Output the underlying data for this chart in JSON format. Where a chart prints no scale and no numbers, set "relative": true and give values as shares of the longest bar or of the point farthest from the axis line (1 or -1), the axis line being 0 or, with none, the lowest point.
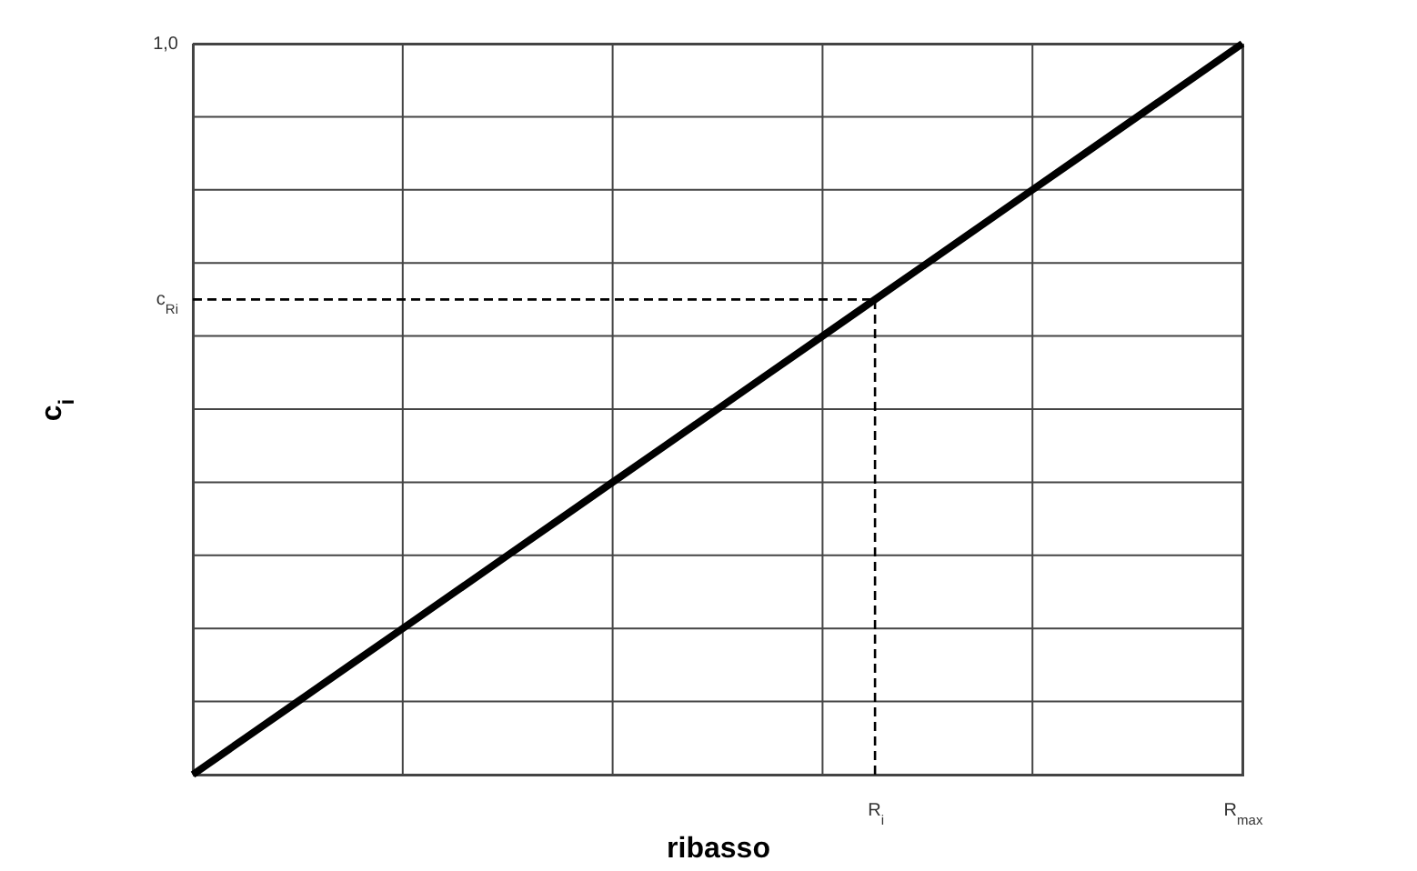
{
  "chart_data": {
    "type": "line",
    "xlabel": "ribasso",
    "ylabel": "c$_{i}$",
    "relative": true,
    "categories": [
      null,
      null,
      null,
      null,
      null,
      null,
      null,
      null,
      null,
      null,
      null,
      null,
      null,
      "R$_{i}$",
      null,
      null,
      null,
      null,
      null,
      null,
      "R$_{max}$"
    ],
    "grid": true,
    "series": [
      {
        "color": "#000000",
        "values": [
          0,
          0.05,
          0.1,
          0.15,
          0.2,
          0.25,
          0.3,
          0.35,
          0.4,
          0.45,
          0.5,
          0.55,
          0.6,
          0.65,
          0.7,
          0.75,
          0.8,
          0.85,
          0.9,
          0.95,
          1
        ]
      }
    ],
    "ref_lines": [
      {
        "axis": "x",
        "value": "R$_{i}$",
        "line_style": "dashed",
        "color": "#000000"
      },
      {
        "axis": "y",
        "value": 0.65,
        "label": "c$_{Ri}$",
        "line_style": "dashed",
        "color": "#000000"
      }
    ],
    "annotations": [
      "1,0"
    ]
  }
}
